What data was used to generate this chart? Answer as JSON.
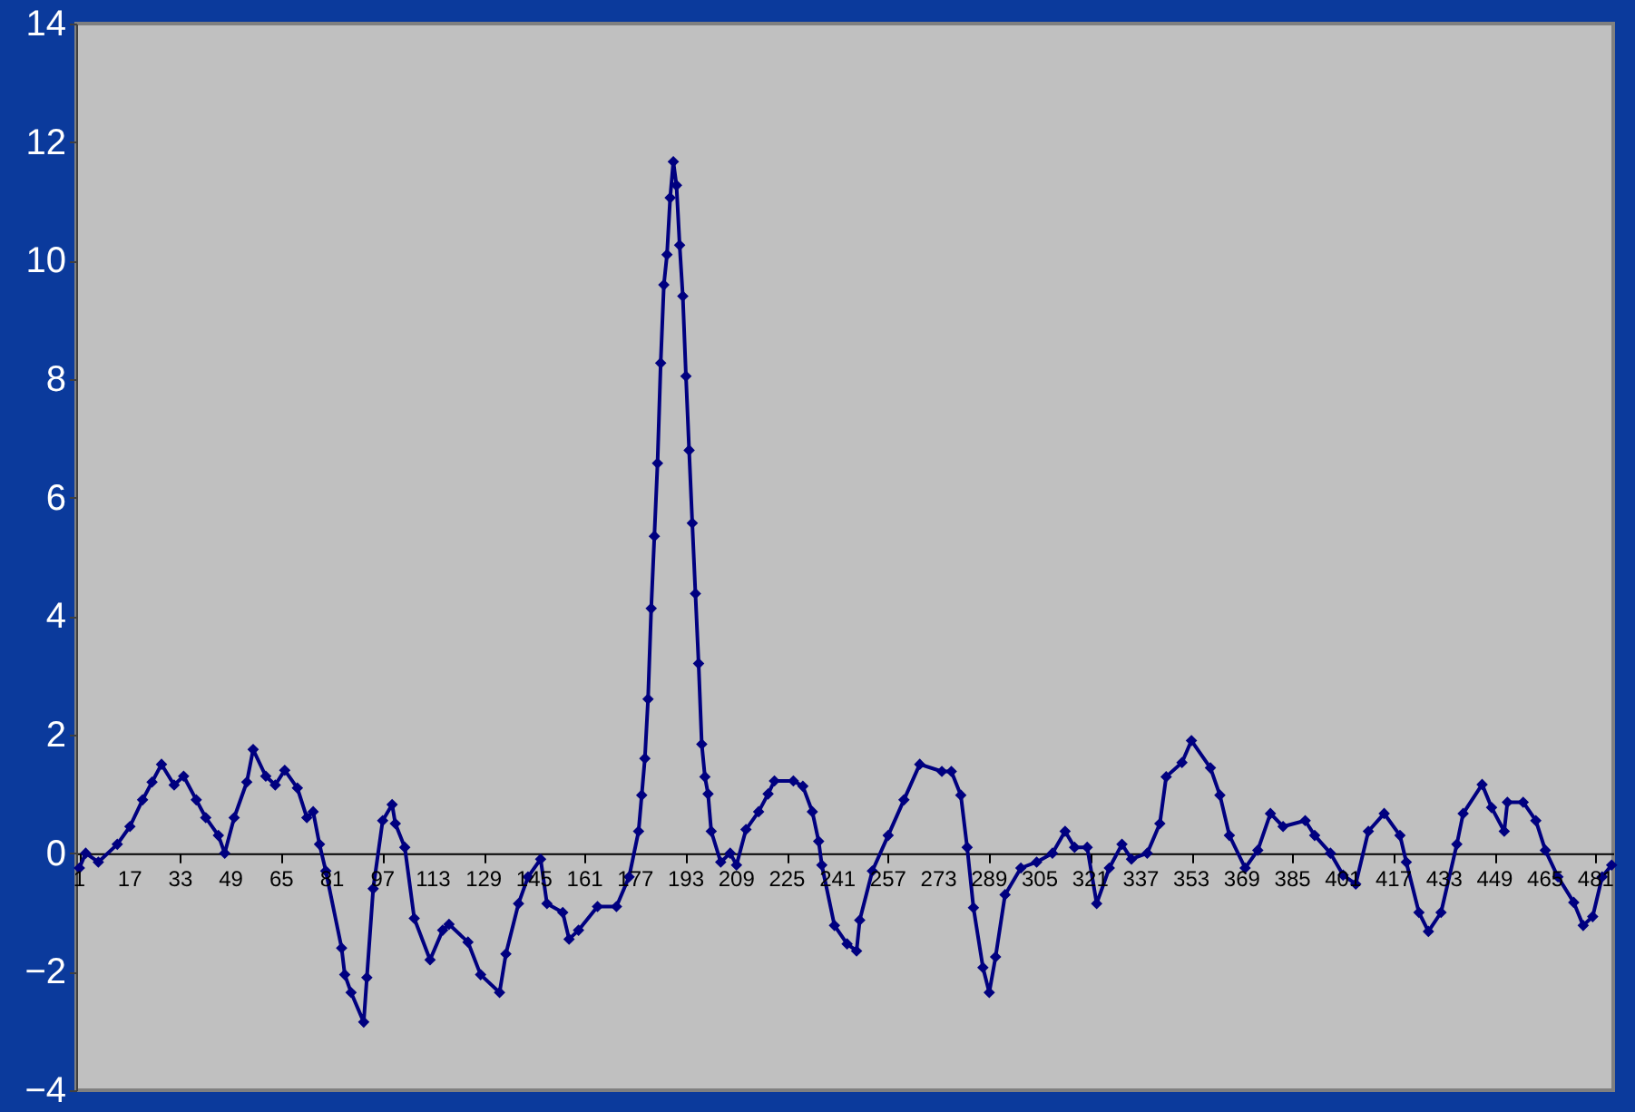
{
  "chart_data": {
    "type": "line",
    "x": [
      1,
      3,
      7,
      13,
      17,
      21,
      24,
      27,
      31,
      34,
      38,
      41,
      45,
      47,
      50,
      54,
      56,
      60,
      63,
      66,
      70,
      73,
      75,
      77,
      79,
      84,
      85,
      87,
      91,
      92,
      94,
      97,
      100,
      101,
      104,
      107,
      112,
      116,
      118,
      124,
      128,
      134,
      136,
      140,
      143,
      147,
      149,
      154,
      156,
      159,
      165,
      171,
      175,
      178,
      179,
      180,
      181,
      182,
      183,
      184,
      185,
      186,
      187,
      188,
      189,
      190,
      191,
      192,
      193,
      194,
      195,
      196,
      197,
      198,
      199,
      200,
      201,
      204,
      207,
      209,
      212,
      216,
      219,
      221,
      227,
      230,
      233,
      235,
      236,
      240,
      244,
      247,
      248,
      252,
      257,
      262,
      267,
      274,
      277,
      280,
      282,
      284,
      287,
      289,
      291,
      294,
      299,
      304,
      309,
      313,
      316,
      320,
      323,
      327,
      331,
      334,
      339,
      343,
      345,
      350,
      353,
      359,
      362,
      365,
      370,
      374,
      378,
      382,
      389,
      392,
      397,
      401,
      405,
      409,
      414,
      419,
      421,
      425,
      428,
      432,
      437,
      439,
      445,
      448,
      452,
      453,
      458,
      462,
      465,
      469,
      474,
      477,
      480,
      483,
      486
    ],
    "series": [
      {
        "color": "#000080",
        "values": [
          -0.25,
          0,
          -0.15,
          0.15,
          0.45,
          0.9,
          1.2,
          1.5,
          1.15,
          1.3,
          0.9,
          0.6,
          0.3,
          0,
          0.6,
          1.2,
          1.75,
          1.3,
          1.15,
          1.4,
          1.1,
          0.6,
          0.7,
          0.15,
          -0.3,
          -1.6,
          -2.05,
          -2.35,
          -2.85,
          -2.1,
          -0.6,
          0.55,
          0.82,
          0.5,
          0.1,
          -1.1,
          -1.8,
          -1.3,
          -1.2,
          -1.5,
          -2.05,
          -2.35,
          -1.7,
          -0.85,
          -0.4,
          -0.1,
          -0.85,
          -1.0,
          -1.45,
          -1.3,
          -0.9,
          -0.9,
          -0.4,
          0.37,
          0.98,
          1.6,
          2.6,
          4.13,
          5.35,
          6.58,
          8.27,
          9.59,
          10.1,
          11.06,
          11.67,
          11.27,
          10.26,
          9.4,
          8.05,
          6.8,
          5.57,
          4.38,
          3.2,
          1.84,
          1.29,
          1.0,
          0.37,
          -0.15,
          0,
          -0.2,
          0.4,
          0.7,
          1.0,
          1.22,
          1.22,
          1.13,
          0.7,
          0.2,
          -0.2,
          -1.22,
          -1.53,
          -1.65,
          -1.13,
          -0.3,
          0.3,
          0.9,
          1.5,
          1.38,
          1.38,
          0.98,
          0.1,
          -0.92,
          -1.93,
          -2.35,
          -1.75,
          -0.7,
          -0.25,
          -0.15,
          0,
          0.37,
          0.1,
          0.1,
          -0.85,
          -0.25,
          0.15,
          -0.1,
          0,
          0.5,
          1.29,
          1.53,
          1.9,
          1.44,
          0.98,
          0.3,
          -0.25,
          0.05,
          0.67,
          0.45,
          0.55,
          0.3,
          0,
          -0.37,
          -0.52,
          0.37,
          0.67,
          0.3,
          -0.15,
          -1.0,
          -1.32,
          -1.0,
          0.15,
          0.67,
          1.16,
          0.77,
          0.37,
          0.86,
          0.86,
          0.55,
          0.05,
          -0.4,
          -0.83,
          -1.22,
          -1.07,
          -0.4,
          -0.2
        ]
      }
    ],
    "xlim": [
      0,
      486.5
    ],
    "xticks": [
      1,
      17,
      33,
      49,
      65,
      81,
      97,
      113,
      129,
      145,
      161,
      177,
      193,
      209,
      225,
      241,
      257,
      273,
      289,
      305,
      321,
      337,
      353,
      369,
      385,
      401,
      417,
      433,
      449,
      465,
      481
    ],
    "ylim": [
      -4,
      14
    ],
    "yticks": [
      -4,
      -2,
      0,
      2,
      4,
      6,
      8,
      10,
      12,
      14
    ],
    "grid": false,
    "marker": "diamond",
    "line_style": "solid"
  }
}
